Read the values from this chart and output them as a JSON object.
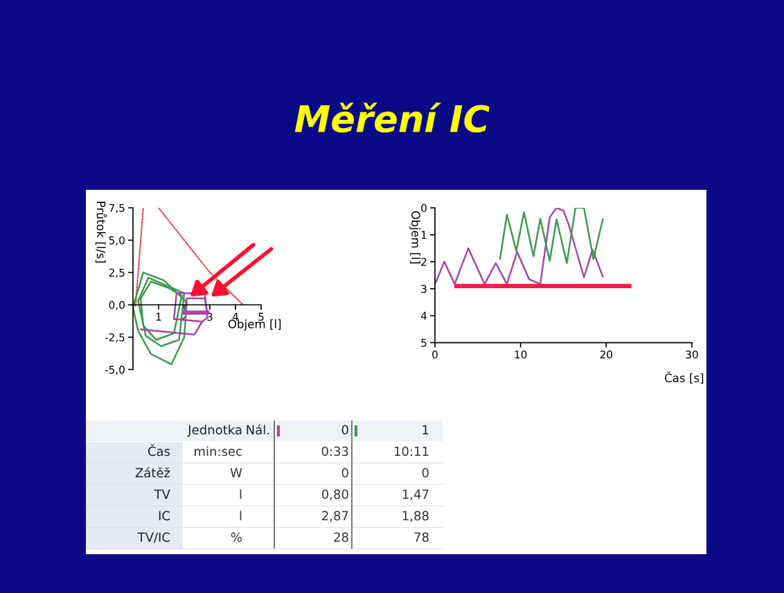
{
  "chart_data": [
    {
      "type": "other",
      "title": "Měření IC"
    },
    {
      "type": "line",
      "xlabel": "Objem [l]",
      "ylabel": "Průtok [l/s]",
      "xlim": [
        0,
        5
      ],
      "ylim": [
        -5,
        7.5
      ],
      "xticks": [
        1,
        2,
        3,
        4,
        5
      ],
      "yticks": [
        {
          "value": -5,
          "label": "-5,0"
        },
        {
          "value": -2.5,
          "label": "-2,5"
        },
        {
          "value": 0,
          "label": "0,0"
        },
        {
          "value": 2.5,
          "label": "2,5"
        },
        {
          "value": 5,
          "label": "5,0"
        },
        {
          "value": 7.5,
          "label": "7,5"
        }
      ],
      "grid": false,
      "legend": false,
      "series": [
        {
          "color": "#e05060",
          "line_style": "dotted",
          "x": [
            0.1,
            0.4
          ],
          "values": [
            -0.1,
            7.5
          ]
        },
        {
          "color": "#e05060",
          "line_style": "dotted",
          "x": [
            1.0,
            3.0,
            4.3
          ],
          "values": [
            7.5,
            2.5,
            0.0
          ]
        },
        {
          "color": "#3c9a50",
          "x": [
            0.0,
            0.4,
            1.2,
            2.1
          ],
          "values": [
            -0.2,
            2.5,
            1.9,
            0.2
          ]
        },
        {
          "color": "#3c9a50",
          "x": [
            0.0,
            0.2,
            0.7,
            1.5,
            2.0,
            2.1
          ],
          "values": [
            -0.2,
            -2.0,
            -3.8,
            -4.6,
            -2.5,
            0.2
          ]
        },
        {
          "color": "#3c9a50",
          "x": [
            0.2,
            0.6,
            1.3,
            2.0
          ],
          "values": [
            0.3,
            2.1,
            1.5,
            0.9
          ]
        },
        {
          "color": "#3c9a50",
          "x": [
            0.2,
            0.5,
            1.1,
            1.8,
            2.0
          ],
          "values": [
            0.3,
            -2.4,
            -3.2,
            -2.7,
            0.9
          ]
        },
        {
          "color": "#3c9a50",
          "x": [
            0.3,
            0.7,
            1.4,
            1.9
          ],
          "values": [
            0.5,
            1.8,
            1.3,
            0.7
          ]
        },
        {
          "color": "#3c9a50",
          "x": [
            0.3,
            0.4,
            0.9,
            1.6,
            1.9
          ],
          "values": [
            0.5,
            -1.6,
            -2.7,
            -2.2,
            0.7
          ]
        },
        {
          "color": "#a845a8",
          "x": [
            1.6,
            1.7,
            2.8,
            2.9
          ],
          "values": [
            -1.1,
            0.9,
            0.9,
            -1.0
          ]
        },
        {
          "color": "#a845a8",
          "x": [
            1.6,
            2.7,
            2.9
          ],
          "values": [
            -1.1,
            -1.3,
            -1.0
          ]
        },
        {
          "color": "#a845a8",
          "x": [
            2.0,
            2.1,
            2.8,
            2.9
          ],
          "values": [
            -0.6,
            0.5,
            0.5,
            -0.6
          ]
        },
        {
          "color": "#a845a8",
          "x": [
            2.0,
            2.9
          ],
          "values": [
            -0.6,
            -0.6
          ]
        },
        {
          "color": "#a845a8",
          "x": [
            0.3,
            2.4,
            2.7
          ],
          "values": [
            -1.9,
            -2.3,
            -1.3
          ]
        }
      ]
    },
    {
      "type": "line",
      "xlabel": "Čas [s]",
      "ylabel": "Objem [l]",
      "xlim": [
        0,
        30
      ],
      "ylim": [
        5,
        0
      ],
      "xticks": [
        0,
        10,
        20,
        30
      ],
      "yticks": [
        0,
        1,
        2,
        3,
        4,
        5
      ],
      "grid": false,
      "legend": false,
      "series": [
        {
          "color": "#a845a8",
          "x": [
            0,
            1.1,
            2.3,
            3.9,
            5.8,
            7.1,
            8.4,
            9.6,
            11,
            12.3,
            13.4,
            14.2,
            15,
            15.6,
            17.4,
            18.4,
            19.6
          ],
          "values": [
            2.83,
            2.0,
            2.83,
            1.5,
            2.83,
            2.05,
            2.83,
            1.63,
            2.65,
            2.83,
            0.35,
            0,
            0.1,
            0.6,
            2.57,
            1.55,
            2.55
          ]
        },
        {
          "color": "#3c9a50",
          "x": [
            7.6,
            8.4,
            9.5,
            10.4,
            11.5,
            12.3,
            13.4,
            14.2,
            15.4,
            16.4,
            17.4,
            18.5,
            19.6
          ],
          "values": [
            1.9,
            0.25,
            1.6,
            0.17,
            1.8,
            0.4,
            1.97,
            0.43,
            2.05,
            0,
            0,
            1.9,
            0.43
          ]
        },
        {
          "color": "#ff1a4a",
          "x": [
            2.5,
            22.7
          ],
          "values": [
            2.9,
            2.9
          ]
        }
      ]
    },
    {
      "type": "other",
      "categories": [
        "Jednotka",
        "Nál.",
        "0",
        "1"
      ],
      "y_categories": [
        "Čas",
        "Zátěž",
        "TV",
        "IC",
        "TV/IC"
      ],
      "cell_labels": [
        [
          "min:sec",
          null,
          "0:33",
          "10:11"
        ],
        [
          "W",
          null,
          "0",
          "0"
        ],
        [
          "l",
          null,
          "0,80",
          "1,47"
        ],
        [
          "l",
          null,
          "2,87",
          "1,88"
        ],
        [
          "%",
          null,
          "28",
          "78"
        ]
      ]
    }
  ]
}
